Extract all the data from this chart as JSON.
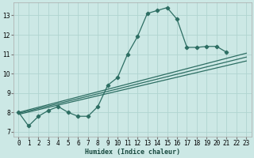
{
  "xlabel": "Humidex (Indice chaleur)",
  "bg_color": "#cce8e5",
  "grid_color": "#b0d4d0",
  "line_color": "#2d6e63",
  "xlim": [
    -0.5,
    23.5
  ],
  "ylim": [
    6.75,
    13.65
  ],
  "xtick_labels": [
    "0",
    "1",
    "2",
    "3",
    "4",
    "5",
    "6",
    "7",
    "8",
    "9",
    "10",
    "11",
    "12",
    "13",
    "14",
    "15",
    "16",
    "17",
    "18",
    "19",
    "20",
    "21",
    "22",
    "23"
  ],
  "yticks": [
    7,
    8,
    9,
    10,
    11,
    12,
    13
  ],
  "main_x": [
    0,
    1,
    2,
    3,
    4,
    5,
    6,
    7,
    8,
    9,
    10,
    11,
    12,
    13,
    14,
    15,
    16,
    17,
    18,
    19,
    20,
    21
  ],
  "main_y": [
    8.0,
    7.3,
    7.8,
    8.1,
    8.3,
    8.0,
    7.8,
    7.8,
    8.3,
    9.4,
    9.8,
    11.0,
    11.9,
    13.1,
    13.25,
    13.4,
    12.8,
    11.35,
    11.35,
    11.4,
    11.4,
    11.1
  ],
  "trend_lines": [
    {
      "x": [
        0,
        23
      ],
      "y": [
        7.9,
        10.65
      ]
    },
    {
      "x": [
        0,
        23
      ],
      "y": [
        7.95,
        10.85
      ]
    },
    {
      "x": [
        0,
        23
      ],
      "y": [
        8.0,
        11.05
      ]
    }
  ]
}
